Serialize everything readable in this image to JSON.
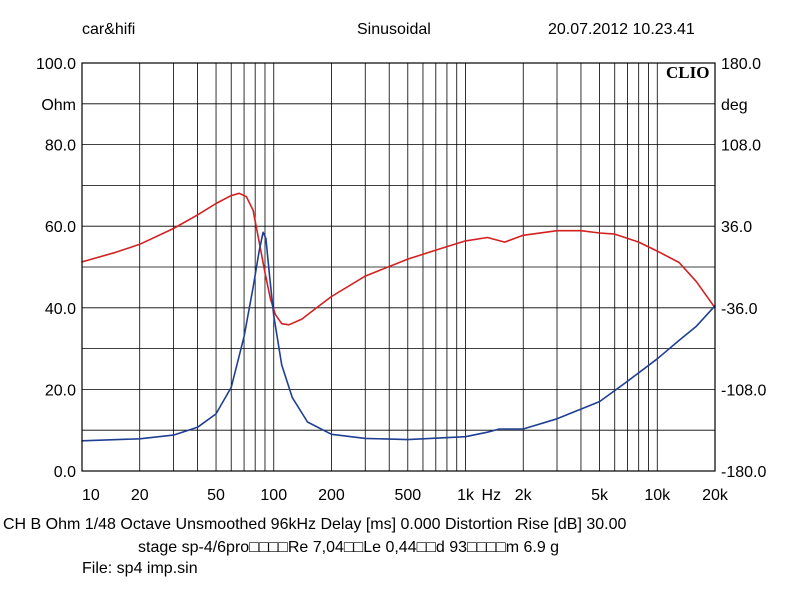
{
  "header": {
    "brand": "car&hifi",
    "mode": "Sinusoidal",
    "timestamp": "20.07.2012 10.23.41"
  },
  "footer": {
    "settings_line": "CH B   Ohm    1/48 Octave   Unsmoothed   96kHz    Delay [ms] 0.000    Distortion Rise [dB] 30.00",
    "params_line": "stage sp-4/6pro□□□□Re 7,04□□Le 0,44□□d 93□□□□m 6.9 g",
    "file_line": "File: sp4 imp.sin"
  },
  "colors": {
    "impedance": "#d42020",
    "phase": "#1f3f93",
    "grid": "#000000",
    "background": "#ffffff"
  },
  "chart_data": {
    "type": "line",
    "logo": "CLIO",
    "x_scale": "log",
    "xlim": [
      10,
      20000
    ],
    "xtick_values": [
      10,
      20,
      50,
      100,
      200,
      500,
      1000,
      2000,
      5000,
      10000,
      20000
    ],
    "xtick_labels": [
      "10",
      "20",
      "50",
      "100",
      "200",
      "500",
      "1k",
      "2k",
      "5k",
      "10k",
      "20k"
    ],
    "x_unit": "Hz",
    "y_left": {
      "unit": "Ohm",
      "lim": [
        0,
        100
      ],
      "ticks": [
        {
          "value": 100,
          "label": "100.0"
        },
        {
          "value": 80,
          "label": "80.0"
        },
        {
          "value": 60,
          "label": "60.0"
        },
        {
          "value": 40,
          "label": "40.0"
        },
        {
          "value": 20,
          "label": "20.0"
        },
        {
          "value": 0,
          "label": "0.0"
        }
      ]
    },
    "y_right": {
      "unit": "deg",
      "lim": [
        -180,
        180
      ],
      "ticks": [
        {
          "value": 180,
          "label": "180.0"
        },
        {
          "value": 108,
          "label": "108.0"
        },
        {
          "value": 36,
          "label": "36.0"
        },
        {
          "value": -36,
          "label": "-36.0"
        },
        {
          "value": -108,
          "label": "-108.0"
        },
        {
          "value": -180,
          "label": "-180.0"
        }
      ]
    },
    "grid": true,
    "series": [
      {
        "axis": "right",
        "color": "#d42020",
        "points": [
          [
            10,
            4.5
          ],
          [
            15,
            13
          ],
          [
            20,
            20
          ],
          [
            30,
            34
          ],
          [
            40,
            46
          ],
          [
            50,
            56
          ],
          [
            60,
            63
          ],
          [
            66,
            65
          ],
          [
            72,
            62
          ],
          [
            78,
            50
          ],
          [
            84,
            22
          ],
          [
            90,
            -5
          ],
          [
            96,
            -28
          ],
          [
            102,
            -42
          ],
          [
            110,
            -50
          ],
          [
            120,
            -51
          ],
          [
            140,
            -46
          ],
          [
            170,
            -35
          ],
          [
            200,
            -26
          ],
          [
            300,
            -8
          ],
          [
            500,
            7
          ],
          [
            800,
            18
          ],
          [
            1000,
            23
          ],
          [
            1300,
            26
          ],
          [
            1600,
            22
          ],
          [
            2000,
            28
          ],
          [
            3000,
            32
          ],
          [
            4000,
            32
          ],
          [
            5000,
            30
          ],
          [
            6000,
            29
          ],
          [
            8000,
            22
          ],
          [
            10000,
            14
          ],
          [
            13000,
            4
          ],
          [
            16000,
            -13
          ],
          [
            20000,
            -36
          ]
        ]
      },
      {
        "axis": "left",
        "color": "#1f3f93",
        "points": [
          [
            10,
            7.4
          ],
          [
            20,
            7.9
          ],
          [
            30,
            8.8
          ],
          [
            40,
            10.7
          ],
          [
            50,
            14
          ],
          [
            60,
            20.5
          ],
          [
            70,
            33
          ],
          [
            78,
            45
          ],
          [
            84,
            54
          ],
          [
            88,
            58.5
          ],
          [
            91,
            57
          ],
          [
            95,
            48
          ],
          [
            100,
            38
          ],
          [
            110,
            26
          ],
          [
            125,
            18
          ],
          [
            150,
            12
          ],
          [
            200,
            9
          ],
          [
            300,
            8
          ],
          [
            500,
            7.7
          ],
          [
            1000,
            8.4
          ],
          [
            1300,
            9.5
          ],
          [
            1500,
            10.3
          ],
          [
            2000,
            10.3
          ],
          [
            3000,
            12.8
          ],
          [
            5000,
            17
          ],
          [
            7000,
            22
          ],
          [
            10000,
            27.5
          ],
          [
            13000,
            32
          ],
          [
            16000,
            35.5
          ],
          [
            20000,
            40.5
          ]
        ]
      }
    ]
  }
}
